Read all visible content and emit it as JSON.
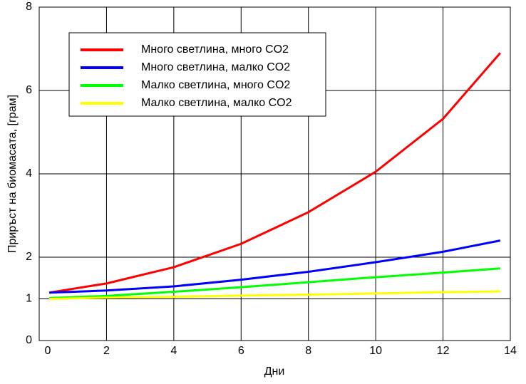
{
  "chart_data": {
    "type": "line",
    "xlabel": "Дни",
    "ylabel": "Приръст на биомасата, [грам]",
    "x": [
      0.3,
      2,
      4,
      6,
      8,
      10,
      12,
      13.7
    ],
    "series": [
      {
        "name": "Много светлина, много CO2",
        "color": "#ff0000",
        "values": [
          1.15,
          1.37,
          1.76,
          2.32,
          3.08,
          4.05,
          5.32,
          6.9
        ]
      },
      {
        "name": "Много светлина, малко CO2",
        "color": "#0000ff",
        "values": [
          1.15,
          1.2,
          1.3,
          1.46,
          1.65,
          1.88,
          2.13,
          2.4
        ]
      },
      {
        "name": "Малко светлина, много CO2",
        "color": "#00ff00",
        "values": [
          1.02,
          1.07,
          1.17,
          1.28,
          1.4,
          1.52,
          1.63,
          1.73
        ]
      },
      {
        "name": "Малко светлина, малко CO2",
        "color": "#ffff00",
        "values": [
          1.0,
          1.03,
          1.05,
          1.08,
          1.1,
          1.13,
          1.16,
          1.18
        ]
      }
    ],
    "xlim": [
      0,
      14
    ],
    "xticks": [
      0,
      2,
      4,
      6,
      8,
      10,
      12,
      14
    ],
    "ylim": [
      0,
      8
    ],
    "yticks": [
      0,
      1,
      2,
      4,
      6,
      8
    ],
    "grid": true,
    "legend": "upper left"
  }
}
